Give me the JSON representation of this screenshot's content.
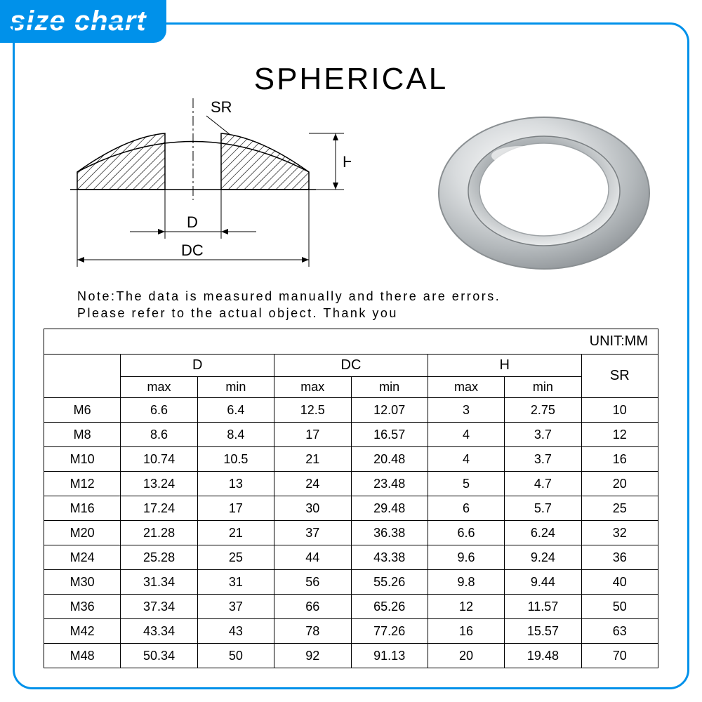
{
  "badge": {
    "text": "size chart",
    "bg": "#0091ea",
    "color": "#ffffff"
  },
  "title": "SPHERICAL",
  "note_line1": "Note:The data is measured manually and there are errors.",
  "note_line2": "Please refer to the actual object. Thank you",
  "diagram": {
    "labels": {
      "SR": "SR",
      "H": "H",
      "D": "D",
      "DC": "DC"
    }
  },
  "table": {
    "unit_label": "UNIT:MM",
    "group_headers": [
      "",
      "D",
      "DC",
      "H",
      "SR"
    ],
    "sub_headers": [
      "max",
      "min",
      "max",
      "min",
      "max",
      "min"
    ],
    "rows": [
      {
        "size": "M6",
        "cells": [
          "6.6",
          "6.4",
          "12.5",
          "12.07",
          "3",
          "2.75",
          "10"
        ]
      },
      {
        "size": "M8",
        "cells": [
          "8.6",
          "8.4",
          "17",
          "16.57",
          "4",
          "3.7",
          "12"
        ]
      },
      {
        "size": "M10",
        "cells": [
          "10.74",
          "10.5",
          "21",
          "20.48",
          "4",
          "3.7",
          "16"
        ]
      },
      {
        "size": "M12",
        "cells": [
          "13.24",
          "13",
          "24",
          "23.48",
          "5",
          "4.7",
          "20"
        ]
      },
      {
        "size": "M16",
        "cells": [
          "17.24",
          "17",
          "30",
          "29.48",
          "6",
          "5.7",
          "25"
        ]
      },
      {
        "size": "M20",
        "cells": [
          "21.28",
          "21",
          "37",
          "36.38",
          "6.6",
          "6.24",
          "32"
        ]
      },
      {
        "size": "M24",
        "cells": [
          "25.28",
          "25",
          "44",
          "43.38",
          "9.6",
          "9.24",
          "36"
        ]
      },
      {
        "size": "M30",
        "cells": [
          "31.34",
          "31",
          "56",
          "55.26",
          "9.8",
          "9.44",
          "40"
        ]
      },
      {
        "size": "M36",
        "cells": [
          "37.34",
          "37",
          "66",
          "65.26",
          "12",
          "11.57",
          "50"
        ]
      },
      {
        "size": "M42",
        "cells": [
          "43.34",
          "43",
          "78",
          "77.26",
          "16",
          "15.57",
          "63"
        ]
      },
      {
        "size": "M48",
        "cells": [
          "50.34",
          "50",
          "92",
          "91.13",
          "20",
          "19.48",
          "70"
        ]
      }
    ],
    "col_widths_pct": [
      12.5,
      12.5,
      12.5,
      12.5,
      12.5,
      12.5,
      12.5,
      12.5
    ],
    "border_color": "#000000",
    "font_size": 18
  },
  "colors": {
    "accent": "#0091ea",
    "bg": "#ffffff",
    "text": "#000000"
  }
}
